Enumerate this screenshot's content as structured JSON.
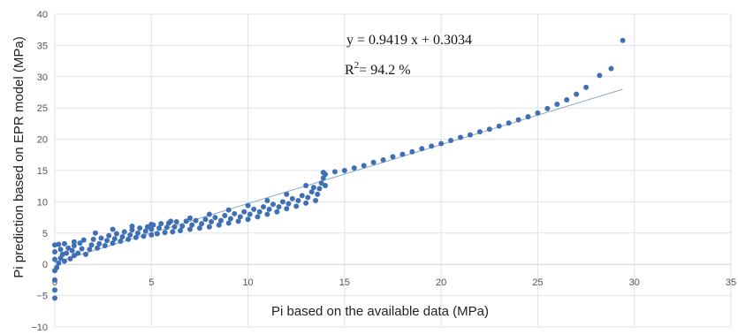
{
  "chart_data": {
    "type": "scatter",
    "xlabel": "Pi based on the available data (MPa)",
    "ylabel": "Pi prediction based on EPR model (MPa)",
    "xlim": [
      0,
      35
    ],
    "ylim": [
      -10,
      40
    ],
    "x_ticks": [
      "0",
      "5",
      "10",
      "15",
      "20",
      "25",
      "30",
      "35"
    ],
    "y_ticks": [
      "-10",
      "-5",
      "0",
      "5",
      "10",
      "15",
      "20",
      "25",
      "30",
      "35",
      "40"
    ],
    "grid": true,
    "marker_color": "#3f6fb5",
    "trendline_color": "#8fa8c8",
    "annotations": {
      "equation": "y = 0.9419 x + 0.3034",
      "r2_prefix": "R",
      "r2_sup": "2",
      "r2_value": "= 94.2 %"
    },
    "trendline": {
      "slope": 0.9419,
      "intercept": 0.3034,
      "x_range": [
        0,
        29.4
      ]
    },
    "points": [
      [
        0.0,
        -5.4
      ],
      [
        0.0,
        -4.1
      ],
      [
        0.0,
        -2.5
      ],
      [
        0.0,
        -1.0
      ],
      [
        0.0,
        0.8
      ],
      [
        0.0,
        2.0
      ],
      [
        0.0,
        3.1
      ],
      [
        0.2,
        3.2
      ],
      [
        0.5,
        3.3
      ],
      [
        0.1,
        -0.5
      ],
      [
        0.2,
        0.2
      ],
      [
        0.3,
        1.0
      ],
      [
        0.4,
        1.6
      ],
      [
        0.3,
        2.4
      ],
      [
        0.6,
        1.8
      ],
      [
        0.7,
        2.6
      ],
      [
        0.5,
        0.5
      ],
      [
        0.8,
        0.9
      ],
      [
        1.0,
        1.4
      ],
      [
        0.9,
        2.2
      ],
      [
        1.0,
        3.0
      ],
      [
        1.0,
        3.6
      ],
      [
        1.2,
        1.8
      ],
      [
        1.4,
        2.5
      ],
      [
        1.3,
        3.4
      ],
      [
        1.5,
        3.9
      ],
      [
        1.6,
        1.6
      ],
      [
        1.8,
        2.4
      ],
      [
        1.9,
        3.1
      ],
      [
        2.0,
        4.0
      ],
      [
        2.2,
        2.6
      ],
      [
        2.3,
        3.3
      ],
      [
        2.4,
        4.2
      ],
      [
        2.6,
        3.0
      ],
      [
        2.7,
        3.8
      ],
      [
        2.8,
        4.6
      ],
      [
        3.0,
        3.4
      ],
      [
        3.1,
        4.1
      ],
      [
        3.2,
        4.9
      ],
      [
        3.4,
        3.7
      ],
      [
        3.5,
        4.4
      ],
      [
        3.6,
        5.2
      ],
      [
        3.8,
        4.0
      ],
      [
        3.9,
        4.7
      ],
      [
        4.0,
        5.5
      ],
      [
        4.2,
        4.3
      ],
      [
        4.3,
        5.0
      ],
      [
        4.4,
        5.8
      ],
      [
        4.6,
        4.5
      ],
      [
        4.7,
        5.3
      ],
      [
        4.8,
        6.0
      ],
      [
        5.0,
        4.7
      ],
      [
        5.0,
        5.6
      ],
      [
        5.1,
        6.3
      ],
      [
        5.3,
        4.9
      ],
      [
        5.4,
        5.8
      ],
      [
        5.5,
        6.5
      ],
      [
        5.7,
        5.1
      ],
      [
        5.8,
        5.9
      ],
      [
        5.9,
        6.6
      ],
      [
        6.1,
        5.2
      ],
      [
        6.2,
        6.0
      ],
      [
        6.3,
        6.8
      ],
      [
        6.5,
        5.4
      ],
      [
        6.6,
        6.1
      ],
      [
        6.8,
        6.9
      ],
      [
        7.0,
        5.6
      ],
      [
        7.1,
        6.3
      ],
      [
        7.3,
        7.0
      ],
      [
        7.5,
        5.8
      ],
      [
        7.6,
        6.5
      ],
      [
        7.8,
        7.2
      ],
      [
        8.0,
        6.0
      ],
      [
        8.1,
        6.8
      ],
      [
        8.3,
        7.5
      ],
      [
        8.5,
        6.3
      ],
      [
        8.6,
        7.0
      ],
      [
        8.8,
        7.8
      ],
      [
        9.0,
        6.6
      ],
      [
        9.1,
        7.3
      ],
      [
        9.3,
        8.1
      ],
      [
        9.5,
        6.9
      ],
      [
        9.6,
        7.6
      ],
      [
        9.8,
        8.4
      ],
      [
        10.0,
        7.2
      ],
      [
        10.1,
        8.0
      ],
      [
        10.3,
        8.8
      ],
      [
        10.5,
        7.6
      ],
      [
        10.6,
        8.4
      ],
      [
        10.8,
        9.2
      ],
      [
        11.0,
        8.0
      ],
      [
        11.1,
        8.8
      ],
      [
        11.3,
        9.6
      ],
      [
        11.5,
        8.4
      ],
      [
        11.6,
        9.2
      ],
      [
        11.8,
        10.0
      ],
      [
        12.0,
        8.9
      ],
      [
        12.1,
        9.7
      ],
      [
        12.3,
        10.5
      ],
      [
        12.5,
        9.3
      ],
      [
        12.6,
        10.2
      ],
      [
        12.8,
        11.0
      ],
      [
        13.0,
        9.8
      ],
      [
        13.1,
        10.7
      ],
      [
        13.3,
        11.6
      ],
      [
        13.4,
        12.3
      ],
      [
        13.5,
        10.2
      ],
      [
        13.6,
        11.2
      ],
      [
        13.7,
        12.1
      ],
      [
        13.8,
        13.0
      ],
      [
        13.9,
        13.8
      ],
      [
        14.0,
        14.4
      ],
      [
        14.0,
        12.6
      ],
      [
        13.9,
        14.7
      ],
      [
        2.1,
        5.0
      ],
      [
        3.0,
        5.6
      ],
      [
        4.0,
        6.1
      ],
      [
        5.0,
        6.4
      ],
      [
        6.0,
        6.9
      ],
      [
        7.0,
        7.4
      ],
      [
        8.0,
        8.0
      ],
      [
        9.0,
        8.7
      ],
      [
        10.0,
        9.4
      ],
      [
        11.0,
        10.2
      ],
      [
        12.0,
        11.2
      ],
      [
        13.0,
        12.6
      ],
      [
        14.5,
        14.8
      ],
      [
        15.0,
        15.0
      ],
      [
        15.5,
        15.4
      ],
      [
        16.0,
        15.8
      ],
      [
        16.5,
        16.3
      ],
      [
        17.0,
        16.7
      ],
      [
        17.5,
        17.2
      ],
      [
        18.0,
        17.6
      ],
      [
        18.5,
        18.0
      ],
      [
        19.0,
        18.5
      ],
      [
        19.5,
        18.9
      ],
      [
        20.0,
        19.3
      ],
      [
        20.5,
        19.8
      ],
      [
        21.0,
        20.3
      ],
      [
        21.5,
        20.7
      ],
      [
        22.0,
        21.2
      ],
      [
        22.5,
        21.6
      ],
      [
        23.0,
        22.1
      ],
      [
        23.5,
        22.6
      ],
      [
        24.0,
        23.1
      ],
      [
        24.5,
        23.6
      ],
      [
        25.0,
        24.2
      ],
      [
        25.5,
        24.9
      ],
      [
        26.0,
        25.6
      ],
      [
        26.5,
        26.3
      ],
      [
        27.0,
        27.2
      ],
      [
        27.5,
        28.3
      ],
      [
        28.2,
        30.2
      ],
      [
        28.8,
        31.3
      ],
      [
        29.4,
        35.8
      ]
    ]
  }
}
